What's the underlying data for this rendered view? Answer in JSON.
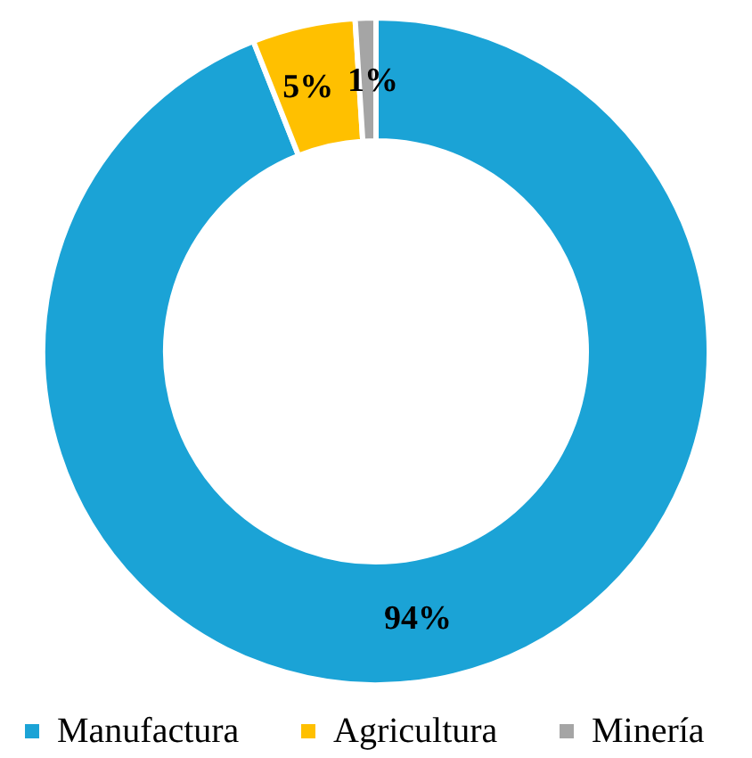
{
  "chart_data": {
    "type": "donut",
    "categories": [
      "Manufactura",
      "Agricultura",
      "Minería"
    ],
    "values": [
      94,
      5,
      1
    ],
    "colors": [
      "#1ba3d6",
      "#ffc000",
      "#a5a5a5"
    ],
    "value_labels": [
      "94%",
      "5%",
      "1%"
    ],
    "legend": "bottom"
  }
}
